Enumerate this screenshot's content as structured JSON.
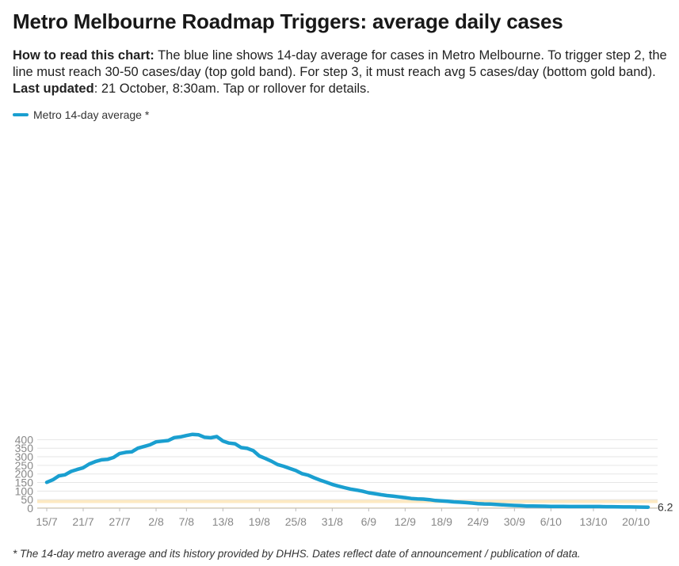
{
  "title": "Metro Melbourne Roadmap Triggers: average daily cases",
  "description": {
    "lead_bold": "How to read this chart:",
    "lead_text": " The blue line shows 14-day average for cases in Metro Melbourne. To trigger step 2, the line must reach 30-50 cases/day (top gold band). For step 3, it must reach avg 5 cases/day (bottom gold band). ",
    "updated_bold": "Last updated",
    "updated_text": ": 21 October, 8:30am. Tap or rollover for details."
  },
  "legend": {
    "label": "Metro 14-day average *"
  },
  "footnote": "* The 14-day metro average and its history provided by DHHS. Dates reflect date of announcement / publication of data.",
  "colors": {
    "line": "#1a9fd0",
    "band": "#fde9c2",
    "grid": "#e6e6e6",
    "axis": "#bbbbbb"
  },
  "chart_data": {
    "type": "line",
    "title": "Metro Melbourne Roadmap Triggers: average daily cases",
    "xlabel": "",
    "ylabel": "",
    "ylim": [
      0,
      450
    ],
    "yticks": [
      0,
      50,
      100,
      150,
      200,
      250,
      300,
      350,
      400
    ],
    "x_tick_labels": [
      "15/7",
      "21/7",
      "27/7",
      "2/8",
      "7/8",
      "13/8",
      "19/8",
      "25/8",
      "31/8",
      "6/9",
      "12/9",
      "18/9",
      "24/9",
      "30/9",
      "6/10",
      "13/10",
      "20/10"
    ],
    "x_tick_day_index": [
      0,
      6,
      12,
      18,
      23,
      29,
      35,
      41,
      47,
      53,
      59,
      65,
      71,
      77,
      83,
      90,
      97
    ],
    "bands": [
      {
        "label": "step 2",
        "from": 30,
        "to": 50
      },
      {
        "label": "step 3",
        "from": 0,
        "to": 5
      }
    ],
    "end_label": "6.2",
    "series": [
      {
        "name": "Metro 14-day average *",
        "start_date": "15/7",
        "values": [
          151,
          166,
          189,
          195,
          215,
          226,
          236,
          258,
          272,
          282,
          285,
          296,
          319,
          326,
          329,
          350,
          360,
          370,
          387,
          391,
          395,
          412,
          416,
          424,
          431,
          428,
          414,
          411,
          418,
          392,
          380,
          376,
          354,
          349,
          336,
          305,
          290,
          274,
          255,
          245,
          232,
          220,
          202,
          193,
          178,
          164,
          152,
          139,
          129,
          120,
          112,
          106,
          99,
          90,
          85,
          79,
          74,
          70,
          66,
          62,
          57,
          54,
          53,
          50,
          45,
          43,
          40,
          37,
          35,
          33,
          30,
          27,
          25,
          24,
          22,
          20,
          18,
          16,
          15,
          13,
          12.5,
          12,
          11.5,
          10.5,
          10.3,
          10,
          9.8,
          9.6,
          9.5,
          9.7,
          9.9,
          9.6,
          9.0,
          8.6,
          8.2,
          7.6,
          7.2,
          6.9,
          6.5,
          6.2
        ]
      }
    ]
  }
}
